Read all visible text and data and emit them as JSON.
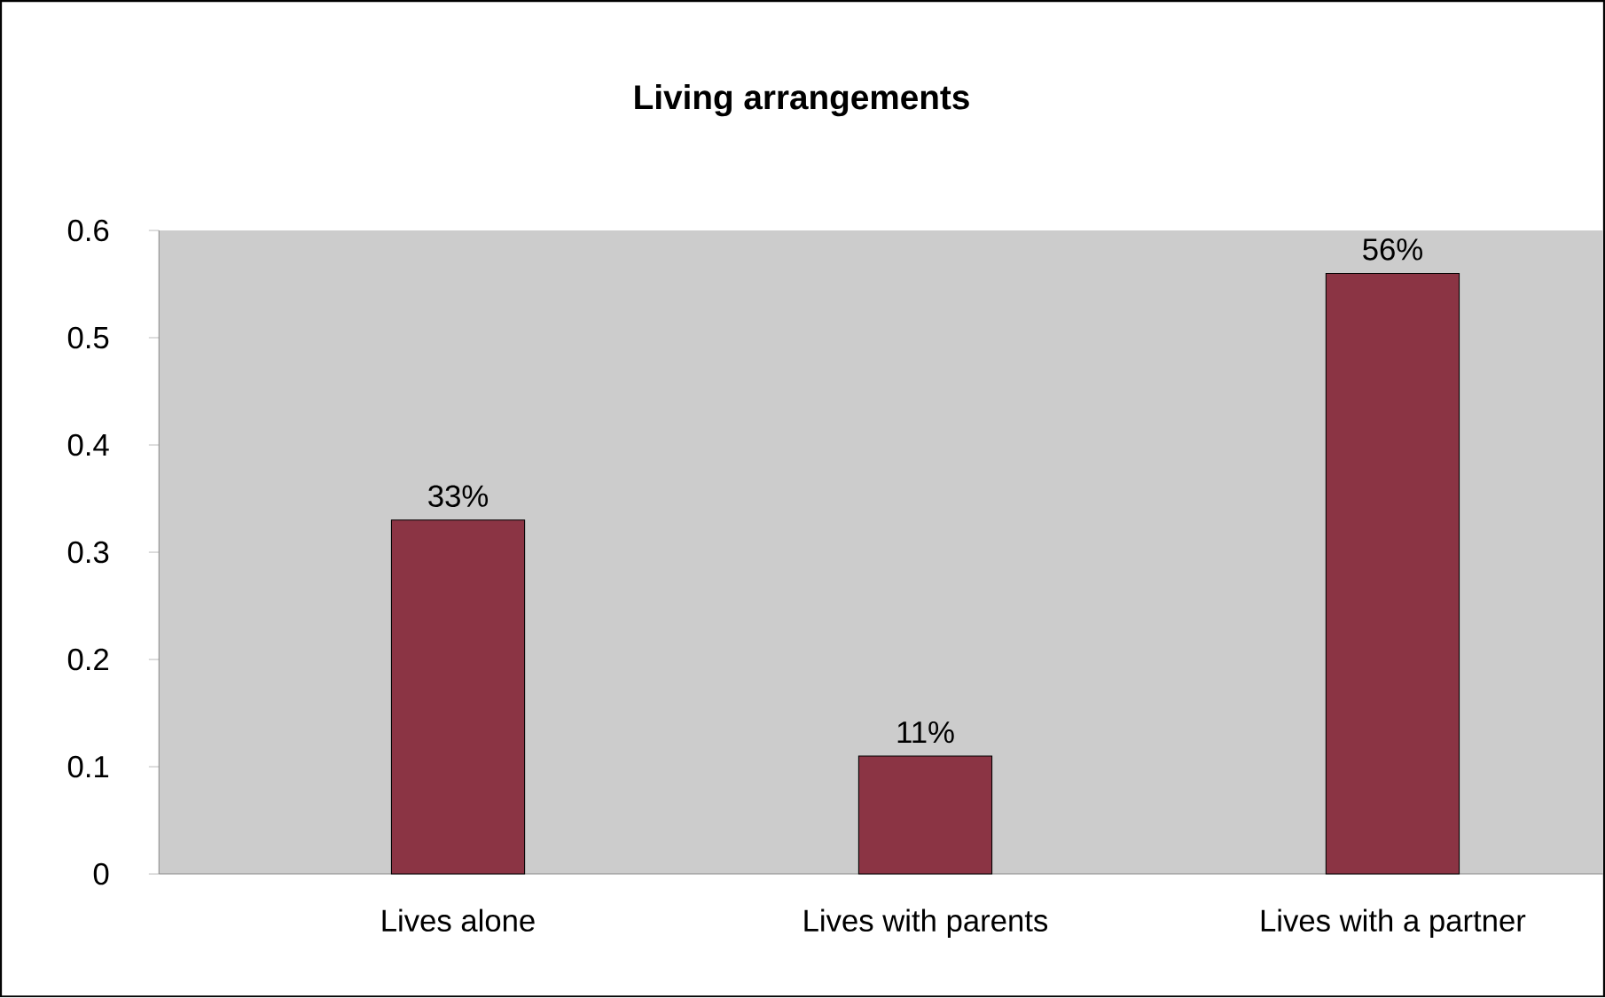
{
  "chart_data": {
    "type": "bar",
    "title": "Living arrangements",
    "categories": [
      "Lives alone",
      "Lives with parents",
      "Lives with a partner"
    ],
    "values": [
      0.33,
      0.11,
      0.56
    ],
    "value_labels": [
      "33%",
      "11%",
      "56%"
    ],
    "color": "#8b3444",
    "ylim": [
      0,
      0.6
    ],
    "yticks": [
      0,
      0.1,
      0.2,
      0.3,
      0.4,
      0.5,
      0.6
    ]
  }
}
